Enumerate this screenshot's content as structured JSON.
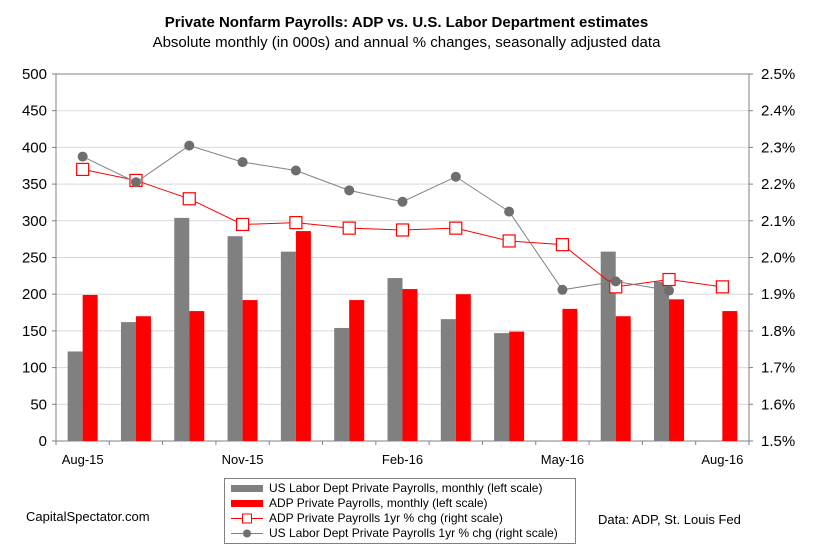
{
  "chart_data": {
    "type": "bar",
    "title": "Private Nonfarm Payrolls: ADP vs. U.S. Labor Department estimates",
    "subtitle": "Absolute monthly (in 000s) and annual % changes, seasonally adjusted data",
    "categories": [
      "Aug-15",
      "Sep-15",
      "Oct-15",
      "Nov-15",
      "Dec-15",
      "Jan-16",
      "Feb-16",
      "Mar-16",
      "Apr-16",
      "May-16",
      "Jun-16",
      "Jul-16",
      "Aug-16"
    ],
    "x_tick_labels": [
      "Aug-15",
      "Nov-15",
      "Feb-16",
      "May-16",
      "Aug-16"
    ],
    "y_left": {
      "min": 0,
      "max": 500,
      "step": 50,
      "ticks": [
        "0",
        "50",
        "100",
        "150",
        "200",
        "250",
        "300",
        "350",
        "400",
        "450",
        "500"
      ]
    },
    "y_right": {
      "min": 1.5,
      "max": 2.5,
      "step": 0.1,
      "ticks": [
        "1.5%",
        "1.6%",
        "1.7%",
        "1.8%",
        "1.9%",
        "2.0%",
        "2.1%",
        "2.2%",
        "2.3%",
        "2.4%",
        "2.5%"
      ]
    },
    "grid": true,
    "legend_position": "bottom",
    "series": [
      {
        "name": "US Labor Dept Private Payrolls, monthly (left scale)",
        "type": "bar",
        "axis": "left",
        "color": "#808080",
        "values": [
          122,
          162,
          304,
          279,
          258,
          154,
          222,
          166,
          147,
          null,
          258,
          217,
          null
        ]
      },
      {
        "name": "ADP Private Payrolls, monthly (left scale)",
        "type": "bar",
        "axis": "left",
        "color": "#ff0000",
        "values": [
          199,
          170,
          177,
          192,
          286,
          192,
          207,
          200,
          149,
          180,
          170,
          193,
          177
        ]
      },
      {
        "name": "ADP Private Payrolls 1yr % chg (right scale)",
        "type": "line",
        "marker": "square",
        "axis": "right",
        "color": "#ff0000",
        "values": [
          2.24,
          2.21,
          2.16,
          2.09,
          2.095,
          2.08,
          2.075,
          2.08,
          2.045,
          2.035,
          1.92,
          1.94,
          1.92
        ]
      },
      {
        "name": "US Labor Dept Private Payrolls 1yr % chg (right scale)",
        "type": "line",
        "marker": "circle",
        "axis": "right",
        "color": "#808080",
        "values": [
          2.275,
          2.205,
          2.305,
          2.26,
          2.237,
          2.183,
          2.152,
          2.22,
          2.125,
          1.912,
          1.935,
          1.91,
          null
        ]
      }
    ]
  },
  "source_left": "CapitalSpectator.com",
  "source_right": "Data: ADP, St. Louis Fed"
}
